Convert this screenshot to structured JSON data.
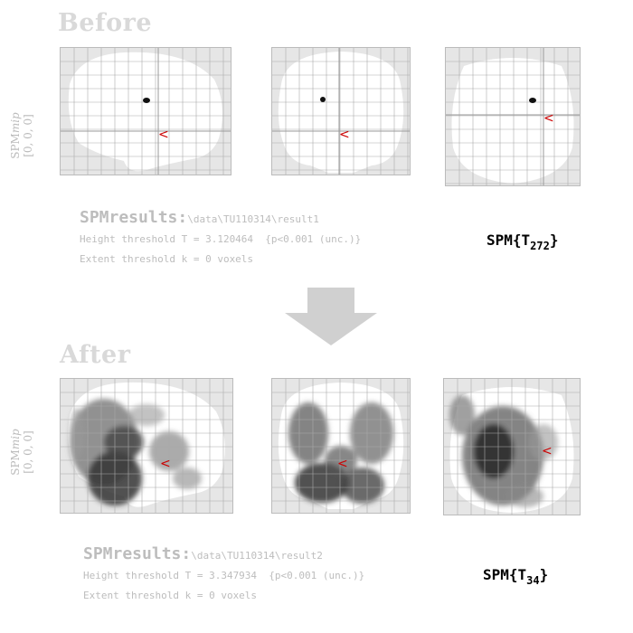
{
  "before": {
    "title": "Before",
    "side_label_top": "SPM",
    "side_label_italic": "mip",
    "side_label_coords": "[0, 0, 0]",
    "results_label": "SPMresults:",
    "results_path": "\\data\\TU110314\\result1",
    "height_threshold": "Height threshold T = 3.120464  {p<0.001 (unc.)}",
    "extent_threshold": "Extent threshold k = 0 voxels",
    "stat_prefix": "SPM{T",
    "stat_df": "272",
    "stat_suffix": "}"
  },
  "after": {
    "title": "After",
    "side_label_top": "SPM",
    "side_label_italic": "mip",
    "side_label_coords": "[0, 0, 0]",
    "results_label": "SPMresults:",
    "results_path": "\\data\\TU110314\\result2",
    "height_threshold": "Height threshold T = 3.347934  {p<0.001 (unc.)}",
    "extent_threshold": "Extent threshold k = 0 voxels",
    "stat_prefix": "SPM{T",
    "stat_df": "34",
    "stat_suffix": "}"
  },
  "colors": {
    "title": "#d9d9d9",
    "label": "#bdbdbd",
    "panel_bg": "#e6e6e6",
    "brain": "#ffffff",
    "grid": "#aaaaaa",
    "marker": "#cc0000",
    "arrow": "#d0d0d0"
  }
}
